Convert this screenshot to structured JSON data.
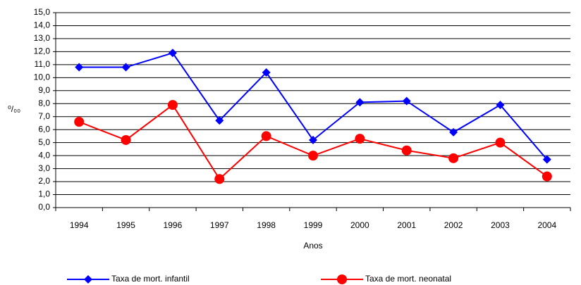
{
  "chart_data": {
    "type": "line",
    "xlabel": "Anos",
    "ylabel": "⁰/₀₀",
    "categories": [
      "1994",
      "1995",
      "1996",
      "1997",
      "1998",
      "1999",
      "2000",
      "2001",
      "2002",
      "2003",
      "2004"
    ],
    "series": [
      {
        "name": "Taxa de mort. infantil",
        "color": "#0000ff",
        "marker": "diamond",
        "values": [
          10.8,
          10.8,
          11.9,
          6.7,
          10.4,
          5.2,
          8.1,
          8.2,
          5.8,
          7.9,
          3.7
        ]
      },
      {
        "name": "Taxa de mort. neonatal",
        "color": "#ff0000",
        "marker": "circle",
        "values": [
          6.6,
          5.2,
          7.9,
          2.2,
          5.5,
          4.0,
          5.3,
          4.4,
          3.8,
          5.0,
          2.4
        ]
      }
    ],
    "ylim": [
      0,
      15
    ],
    "yticks": [
      {
        "value": 0,
        "label": "0,0"
      },
      {
        "value": 1,
        "label": "1,0"
      },
      {
        "value": 2,
        "label": "2,0"
      },
      {
        "value": 3,
        "label": "3,0"
      },
      {
        "value": 4,
        "label": "4,0"
      },
      {
        "value": 5,
        "label": "5,0"
      },
      {
        "value": 6,
        "label": "6,0"
      },
      {
        "value": 7,
        "label": "7,0"
      },
      {
        "value": 8,
        "label": "8,0"
      },
      {
        "value": 9,
        "label": "9,0"
      },
      {
        "value": 10,
        "label": "10,0"
      },
      {
        "value": 11,
        "label": "11,0"
      },
      {
        "value": 12,
        "label": "12,0"
      },
      {
        "value": 13,
        "label": "13,0"
      },
      {
        "value": 14,
        "label": "14,0"
      },
      {
        "value": 15,
        "label": "15,0"
      }
    ],
    "grid": true,
    "legend": "bottom"
  }
}
